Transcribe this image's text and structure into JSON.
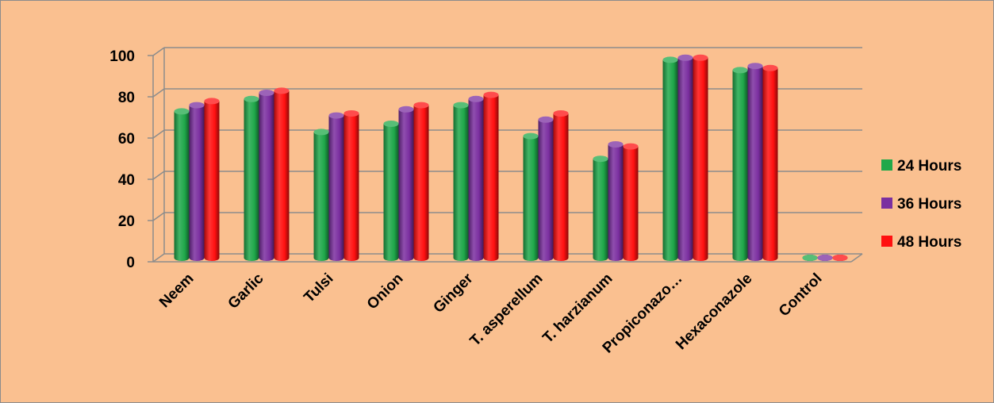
{
  "colors": {
    "background": "#fac090",
    "series": [
      "#1fa84a",
      "#7b2fa0",
      "#ff1010"
    ]
  },
  "chart_data": {
    "type": "bar",
    "bar_style": "3d-cylinder",
    "categories": [
      "Neem",
      "Garlic",
      "Tulsi",
      "Onion",
      "Ginger",
      "T. asperellum",
      "T. harzianum",
      "Propiconazo…",
      "Hexaconazole",
      "Control"
    ],
    "series": [
      {
        "name": "24 Hours",
        "values": [
          71,
          77,
          61,
          65,
          74,
          59,
          48,
          96,
          91,
          0
        ]
      },
      {
        "name": "36 Hours",
        "values": [
          74,
          80,
          69,
          72,
          77,
          67,
          55,
          97,
          93,
          0
        ]
      },
      {
        "name": "48 Hours",
        "values": [
          76,
          81,
          70,
          74,
          79,
          70,
          54,
          97,
          92,
          0
        ]
      }
    ],
    "yticks": [
      "0",
      "20",
      "40",
      "60",
      "80",
      "100"
    ],
    "ylim": [
      0,
      100
    ],
    "grid": true,
    "legend_position": "right",
    "title": "",
    "xlabel": "",
    "ylabel": ""
  }
}
